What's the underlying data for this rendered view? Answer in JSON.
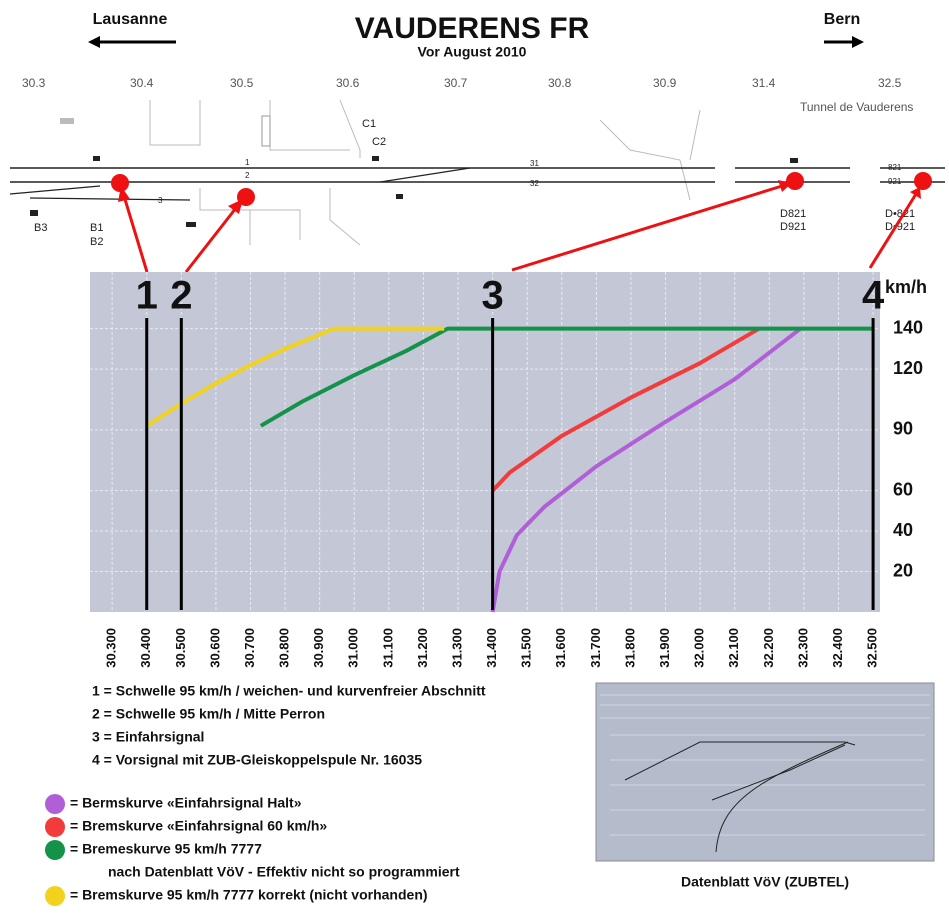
{
  "header": {
    "left": "Lausanne",
    "title": "VAUDERENS FR",
    "subtitle": "Vor August 2010",
    "right": "Bern"
  },
  "track_diagram": {
    "km_labels": [
      "30.3",
      "30.4",
      "30.5",
      "30.6",
      "30.7",
      "30.8",
      "30.9",
      "31.4",
      "32.5"
    ],
    "tunnel": "Tunnel de Vauderens",
    "signals": [
      "C1",
      "C2",
      "B3",
      "B1",
      "B2",
      "D821",
      "D921",
      "D•821",
      "D•921"
    ],
    "tracks": [
      "1",
      "2",
      "3",
      "31",
      "32",
      "821",
      "921"
    ]
  },
  "chart_data": {
    "type": "line",
    "y_label": "km/h",
    "xlim": [
      30.236,
      32.52
    ],
    "ylim": [
      0,
      168
    ],
    "xticks": [
      {
        "value": 30.3,
        "label": "30.300"
      },
      {
        "value": 30.4,
        "label": "30.400"
      },
      {
        "value": 30.5,
        "label": "30.500"
      },
      {
        "value": 30.6,
        "label": "30.600"
      },
      {
        "value": 30.7,
        "label": "30.700"
      },
      {
        "value": 30.8,
        "label": "30.800"
      },
      {
        "value": 30.9,
        "label": "30.900"
      },
      {
        "value": 31.0,
        "label": "31.000"
      },
      {
        "value": 31.1,
        "label": "31.100"
      },
      {
        "value": 31.2,
        "label": "31.200"
      },
      {
        "value": 31.3,
        "label": "31.300"
      },
      {
        "value": 31.4,
        "label": "31.400"
      },
      {
        "value": 31.5,
        "label": "31.500"
      },
      {
        "value": 31.6,
        "label": "31.600"
      },
      {
        "value": 31.7,
        "label": "31.700"
      },
      {
        "value": 31.8,
        "label": "31.800"
      },
      {
        "value": 31.9,
        "label": "31.900"
      },
      {
        "value": 32.0,
        "label": "32.000"
      },
      {
        "value": 32.1,
        "label": "32.100"
      },
      {
        "value": 32.2,
        "label": "32.200"
      },
      {
        "value": 32.3,
        "label": "32.300"
      },
      {
        "value": 32.4,
        "label": "32.400"
      },
      {
        "value": 32.5,
        "label": "32.500"
      }
    ],
    "yticks": [
      20,
      40,
      60,
      90,
      120,
      140
    ],
    "grid": true,
    "series": [
      {
        "name": "= Bermskurve «Einfahrsignal Halt»",
        "color": "#b05fd6",
        "x": [
          31.4,
          31.42,
          31.47,
          31.55,
          31.7,
          31.9,
          32.1,
          32.29
        ],
        "values": [
          0,
          20,
          38,
          52,
          72,
          94,
          115,
          140
        ]
      },
      {
        "name": "= Bremskurve «Einfahrsignal 60 km/h»",
        "color": "#f23b3b",
        "x": [
          31.4,
          31.45,
          31.6,
          31.8,
          32.0,
          32.17
        ],
        "values": [
          60,
          69,
          87,
          106,
          123,
          140
        ]
      },
      {
        "name": "= Bremeskurve 95 km/h 7777",
        "note": "nach Datenblatt VöV -  Effektiv nicht so programmiert",
        "color": "#13934a",
        "x": [
          30.73,
          30.85,
          31.0,
          31.15,
          31.27,
          32.5
        ],
        "values": [
          92,
          104,
          117,
          129,
          140,
          140
        ]
      },
      {
        "name": "= Bremskurve 95 km/h 7777 korrekt (nicht vorhanden)",
        "color": "#f2d21c",
        "x": [
          30.4,
          30.5,
          30.6,
          30.7,
          30.8,
          30.94,
          31.26
        ],
        "values": [
          92,
          103,
          113,
          122,
          130,
          140,
          140
        ]
      }
    ],
    "markers": [
      {
        "label": "1",
        "x": 30.4,
        "description": "1 = Schwelle 95 km/h / weichen- und kurvenfreier Abschnitt"
      },
      {
        "label": "2",
        "x": 30.5,
        "description": "2 = Schwelle 95 km/h / Mitte Perron"
      },
      {
        "label": "3",
        "x": 31.4,
        "description": "3 = Einfahrsignal"
      },
      {
        "label": "4",
        "x": 32.5,
        "description": "4 = Vorsignal mit ZUB-Gleiskoppelspule Nr. 16035"
      }
    ]
  },
  "inset": {
    "caption": "Datenblatt VöV (ZUBTEL)"
  }
}
